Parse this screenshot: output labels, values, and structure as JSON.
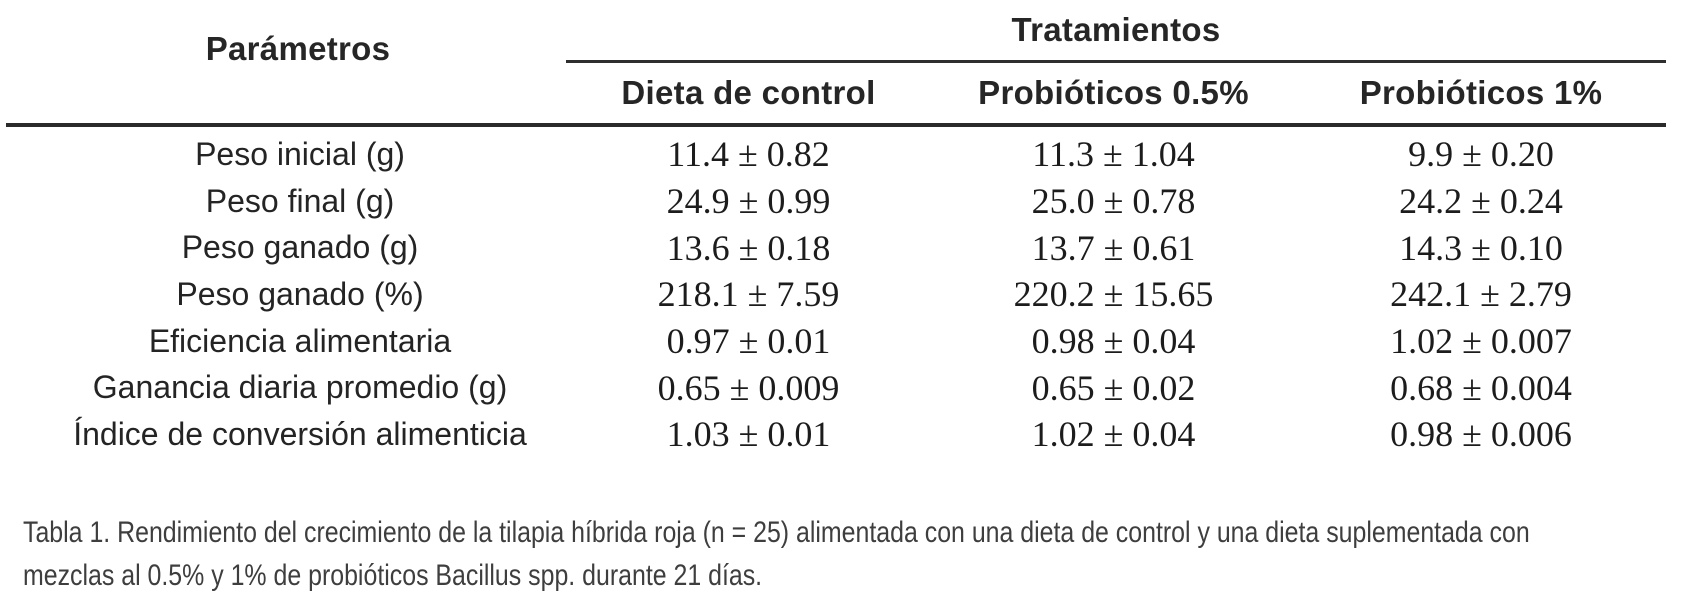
{
  "table": {
    "parameters_header": "Parámetros",
    "treatments_header": "Tratamientos",
    "column_headers": {
      "control": "Dieta de control",
      "prob_05": "Probióticos 0.5%",
      "prob_1": "Probióticos 1%"
    },
    "rows": [
      {
        "parameter": "Peso inicial (g)",
        "control": "11.4 ± 0.82",
        "prob_05": "11.3 ± 1.04",
        "prob_1": "9.9 ± 0.20"
      },
      {
        "parameter": "Peso final (g)",
        "control": "24.9 ± 0.99",
        "prob_05": "25.0 ± 0.78",
        "prob_1": "24.2 ± 0.24"
      },
      {
        "parameter": "Peso ganado (g)",
        "control": "13.6 ± 0.18",
        "prob_05": "13.7 ± 0.61",
        "prob_1": "14.3 ± 0.10"
      },
      {
        "parameter": "Peso ganado (%)",
        "control": "218.1 ± 7.59",
        "prob_05": "220.2 ± 15.65",
        "prob_1": "242.1 ± 2.79"
      },
      {
        "parameter": "Eficiencia alimentaria",
        "control": "0.97 ± 0.01",
        "prob_05": "0.98 ± 0.04",
        "prob_1": "1.02 ± 0.007"
      },
      {
        "parameter": "Ganancia diaria promedio (g)",
        "control": "0.65 ± 0.009",
        "prob_05": "0.65 ± 0.02",
        "prob_1": "0.68 ± 0.004"
      },
      {
        "parameter": "Índice de conversión alimenticia",
        "control": "1.03 ± 0.01",
        "prob_05": "1.02 ± 0.04",
        "prob_1": "0.98 ± 0.006"
      }
    ]
  },
  "caption": {
    "line1": "Tabla 1. Rendimiento del crecimiento de la tilapia híbrida roja (n = 25) alimentada con una dieta de control y una dieta suplementada con",
    "line2": "mezclas al 0.5% y 1% de probióticos Bacillus spp. durante 21 días."
  },
  "colors": {
    "table_text": "#242424",
    "value_text": "#1c1c1c",
    "caption_text": "#3e3e3e",
    "rule": "#2b2b2b"
  }
}
